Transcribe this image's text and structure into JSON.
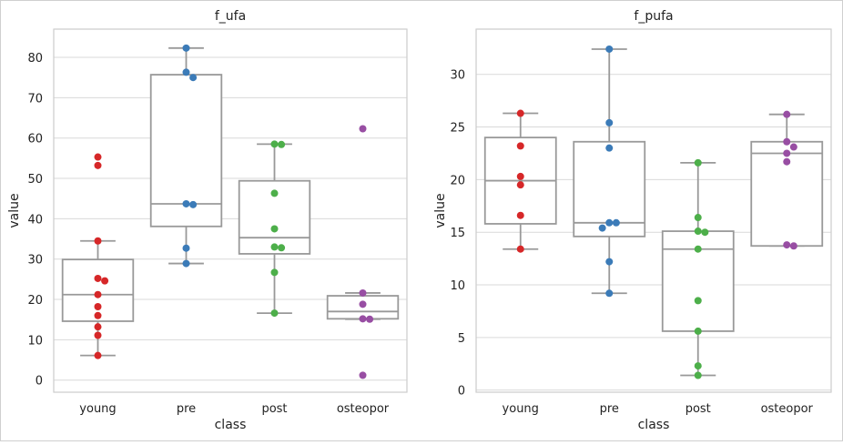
{
  "colors": {
    "young": "#d62728",
    "pre": "#3b7bb8",
    "post": "#4daf4a",
    "osteopor": "#984ea3",
    "box_edge": "#999999",
    "grid": "#d9d9d9",
    "axes_edge": "#cccccc"
  },
  "chart_data": [
    {
      "type": "box+swarm",
      "title": "f_ufa",
      "xlabel": "class",
      "ylabel": "value",
      "categories": [
        "young",
        "pre",
        "post",
        "osteopor"
      ],
      "ylim": [
        -3,
        87
      ],
      "yticks": [
        0,
        10,
        20,
        30,
        40,
        50,
        60,
        70,
        80
      ],
      "grid": true,
      "series": [
        {
          "name": "young",
          "points": [
            55.3,
            53.2,
            34.5,
            25.2,
            24.6,
            21.2,
            18.2,
            16.0,
            13.2,
            11.1,
            6.1
          ],
          "box": {
            "whislo": 6.1,
            "q1": 14.6,
            "med": 21.2,
            "q3": 29.9,
            "whishi": 34.5
          }
        },
        {
          "name": "pre",
          "points": [
            82.3,
            76.3,
            75.0,
            43.7,
            43.5,
            32.7,
            28.9
          ],
          "box": {
            "whislo": 28.9,
            "q1": 38.1,
            "med": 43.7,
            "q3": 75.7,
            "whishi": 82.3
          }
        },
        {
          "name": "post",
          "points": [
            58.5,
            58.4,
            46.3,
            37.5,
            33.0,
            32.8,
            26.7,
            16.6
          ],
          "box": {
            "whislo": 16.6,
            "q1": 31.3,
            "med": 35.3,
            "q3": 49.4,
            "whishi": 58.5
          }
        },
        {
          "name": "osteopor",
          "points": [
            62.3,
            21.6,
            18.8,
            15.2,
            15.1,
            1.2
          ],
          "box": {
            "whislo": 15.1,
            "q1": 15.2,
            "med": 17.0,
            "q3": 20.9,
            "whishi": 21.6
          }
        }
      ]
    },
    {
      "type": "box+swarm",
      "title": "f_pufa",
      "xlabel": "class",
      "ylabel": "value",
      "categories": [
        "young",
        "pre",
        "post",
        "osteopor"
      ],
      "ylim": [
        -0.2,
        34.3
      ],
      "yticks": [
        0,
        5,
        10,
        15,
        20,
        25,
        30
      ],
      "grid": true,
      "series": [
        {
          "name": "young",
          "points": [
            26.3,
            23.2,
            20.3,
            19.5,
            16.6,
            13.4
          ],
          "box": {
            "whislo": 13.4,
            "q1": 15.8,
            "med": 19.9,
            "q3": 24.0,
            "whishi": 26.3
          }
        },
        {
          "name": "pre",
          "points": [
            32.4,
            25.4,
            23.0,
            15.9,
            15.9,
            15.4,
            12.2,
            9.2
          ],
          "box": {
            "whislo": 9.2,
            "q1": 14.6,
            "med": 15.9,
            "q3": 23.6,
            "whishi": 32.4
          }
        },
        {
          "name": "post",
          "points": [
            21.6,
            16.4,
            15.1,
            15.0,
            13.4,
            8.5,
            5.6,
            2.3,
            1.4
          ],
          "box": {
            "whislo": 1.4,
            "q1": 5.6,
            "med": 13.4,
            "q3": 15.1,
            "whishi": 21.6
          }
        },
        {
          "name": "osteopor",
          "points": [
            26.2,
            23.6,
            23.1,
            22.5,
            21.7,
            13.8,
            13.7
          ],
          "box": {
            "whislo": 13.7,
            "q1": 13.7,
            "med": 22.5,
            "q3": 23.6,
            "whishi": 26.2
          }
        }
      ]
    }
  ]
}
